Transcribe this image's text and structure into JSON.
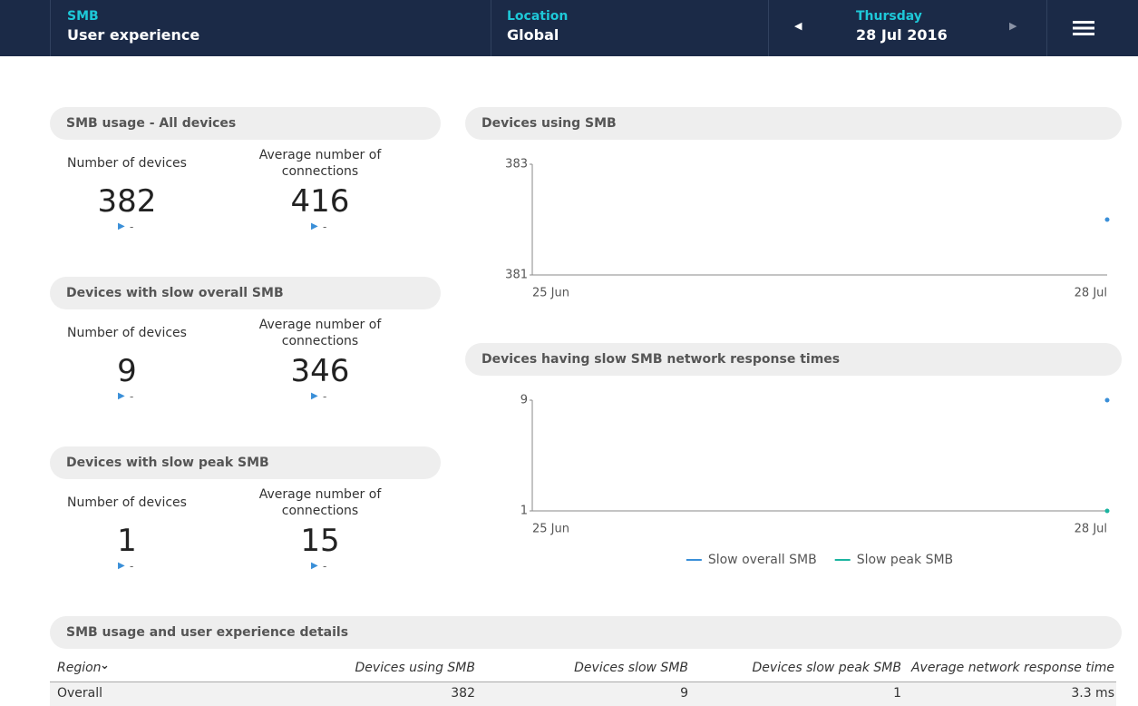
{
  "header": {
    "app_label": "SMB",
    "app_title": "User experience",
    "location_label": "Location",
    "location_value": "Global",
    "day": "Thursday",
    "date": "28 Jul 2016"
  },
  "panels": [
    {
      "title": "SMB usage - All devices",
      "metrics": [
        {
          "label": "Number of devices",
          "value": 382,
          "trend": "-"
        },
        {
          "label": "Average number of connections",
          "value": 416,
          "trend": "-"
        }
      ]
    },
    {
      "title": "Devices with slow overall SMB",
      "metrics": [
        {
          "label": "Number of devices",
          "value": 9,
          "trend": "-"
        },
        {
          "label": "Average number of connections",
          "value": 346,
          "trend": "-"
        }
      ]
    },
    {
      "title": "Devices with slow peak SMB",
      "metrics": [
        {
          "label": "Number of devices",
          "value": 1,
          "trend": "-"
        },
        {
          "label": "Average number of connections",
          "value": 15,
          "trend": "-"
        }
      ]
    }
  ],
  "chart_data": [
    {
      "type": "line",
      "title": "Devices using SMB",
      "x": [
        "25 Jun",
        "28 Jul"
      ],
      "series": [
        {
          "color": "#3a8fd8",
          "values": [
            null,
            382
          ]
        }
      ],
      "ylim": [
        381,
        383
      ],
      "yticks": [
        381,
        383
      ]
    },
    {
      "type": "line",
      "title": "Devices having slow SMB network response times",
      "x": [
        "25 Jun",
        "28 Jul"
      ],
      "series": [
        {
          "name": "Slow overall SMB",
          "color": "#3a8fd8",
          "values": [
            null,
            9
          ]
        },
        {
          "name": "Slow peak SMB",
          "color": "#1bb4a0",
          "values": [
            null,
            1
          ]
        }
      ],
      "ylim": [
        1,
        9
      ],
      "yticks": [
        1,
        9
      ],
      "legend": "bottom"
    }
  ],
  "table": {
    "title": "SMB usage and user experience details",
    "columns": [
      "Region",
      "Devices using SMB",
      "Devices slow SMB",
      "Devices slow peak SMB",
      "Average network response time"
    ],
    "rows": [
      [
        "Overall",
        382,
        9,
        1,
        "3.3 ms"
      ]
    ]
  }
}
